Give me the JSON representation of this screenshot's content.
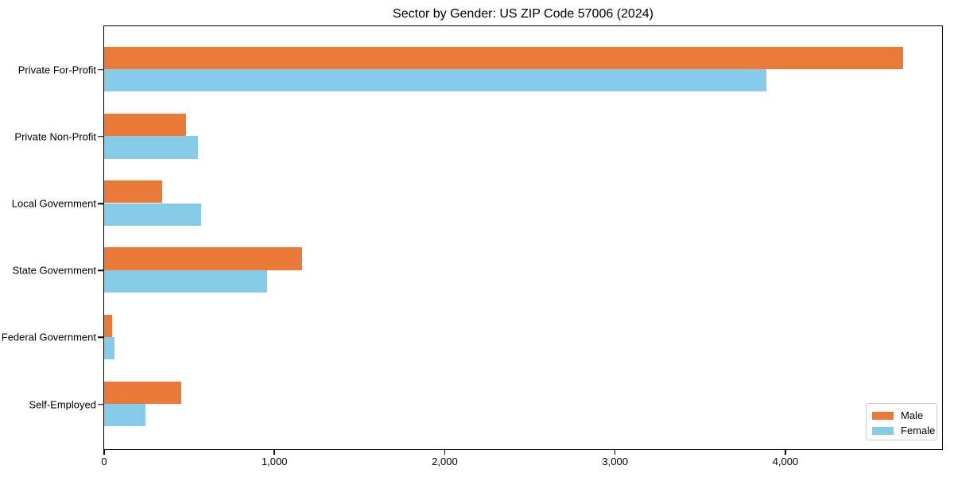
{
  "chart_data": {
    "type": "bar",
    "orientation": "horizontal",
    "title": "Sector by Gender: US ZIP Code 57006 (2024)",
    "categories": [
      "Private For-Profit",
      "Private Non-Profit",
      "Local Government",
      "State Government",
      "Federal Government",
      "Self-Employed"
    ],
    "series": [
      {
        "name": "Male",
        "color": "#eb7a38",
        "values": [
          4690,
          483,
          340,
          1160,
          48,
          455
        ]
      },
      {
        "name": "Female",
        "color": "#86cbe8",
        "values": [
          3890,
          553,
          570,
          957,
          60,
          245
        ]
      }
    ],
    "xlabel": "",
    "ylabel": "",
    "xlim": [
      0,
      4920
    ],
    "xticks": [
      {
        "value": 0,
        "label": "0"
      },
      {
        "value": 1000,
        "label": "1,000"
      },
      {
        "value": 2000,
        "label": "2,000"
      },
      {
        "value": 3000,
        "label": "3,000"
      },
      {
        "value": 4000,
        "label": "4,000"
      }
    ],
    "grid": false,
    "legend": {
      "position": "lower right"
    }
  }
}
